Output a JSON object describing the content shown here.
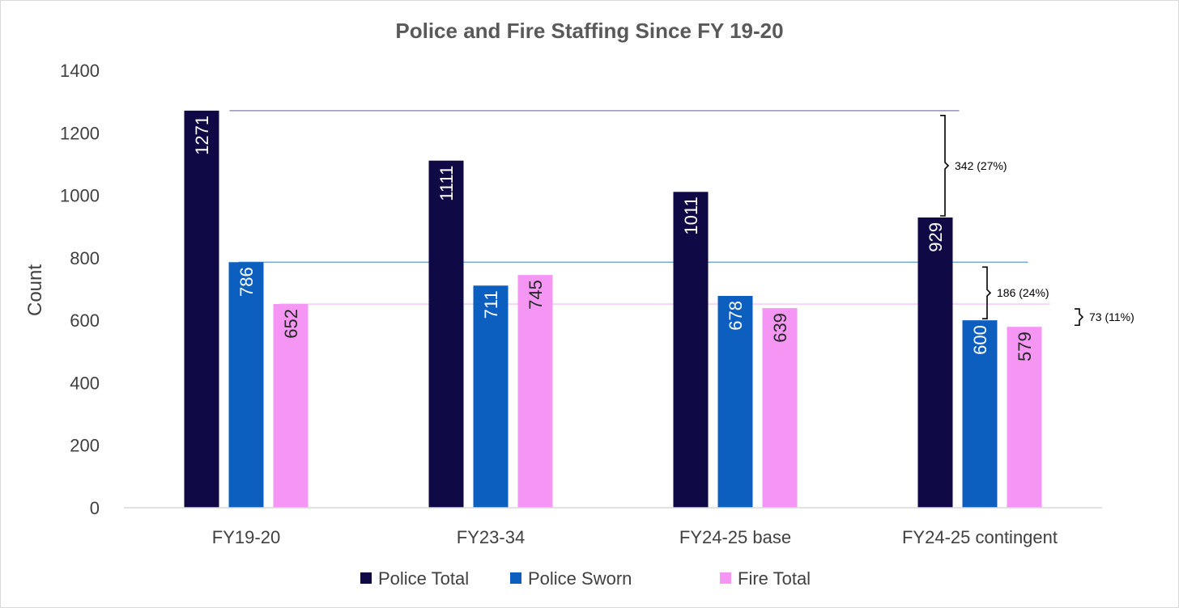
{
  "chart_data": {
    "type": "bar",
    "title": "Police and Fire Staffing Since FY 19-20",
    "xlabel": "",
    "ylabel": "Count",
    "ylim": [
      0,
      1400
    ],
    "yticks": [
      0,
      200,
      400,
      600,
      800,
      1000,
      1200,
      1400
    ],
    "grid": false,
    "legend_position": "bottom",
    "categories": [
      "FY19-20",
      "FY23-34",
      "FY24-25 base",
      "FY24-25 contingent"
    ],
    "series": [
      {
        "name": "Police Total",
        "color": "#0f0a45",
        "label_color": "#ffffff",
        "values": [
          1271,
          1111,
          1011,
          929
        ]
      },
      {
        "name": "Police Sworn",
        "color": "#0d5fbf",
        "label_color": "#ffffff",
        "values": [
          786,
          711,
          678,
          600
        ]
      },
      {
        "name": "Fire Total",
        "color": "#f596f5",
        "label_color": "#262626",
        "values": [
          652,
          745,
          639,
          579
        ]
      }
    ],
    "reference_lines": [
      {
        "series": "Police Total",
        "value": 1271,
        "color": "#7f7fa6"
      },
      {
        "series": "Police Sworn",
        "value": 786,
        "color": "#5b9bd5"
      },
      {
        "series": "Fire Total",
        "value": 652,
        "color": "#f5b6f5"
      }
    ],
    "annotations": [
      {
        "text": "342 (27%)",
        "from": 1271,
        "to": 929,
        "series": "Police Total"
      },
      {
        "text": "186 (24%)",
        "from": 786,
        "to": 600,
        "series": "Police Sworn"
      },
      {
        "text": "73 (11%)",
        "from": 652,
        "to": 579,
        "series": "Fire Total"
      }
    ]
  }
}
